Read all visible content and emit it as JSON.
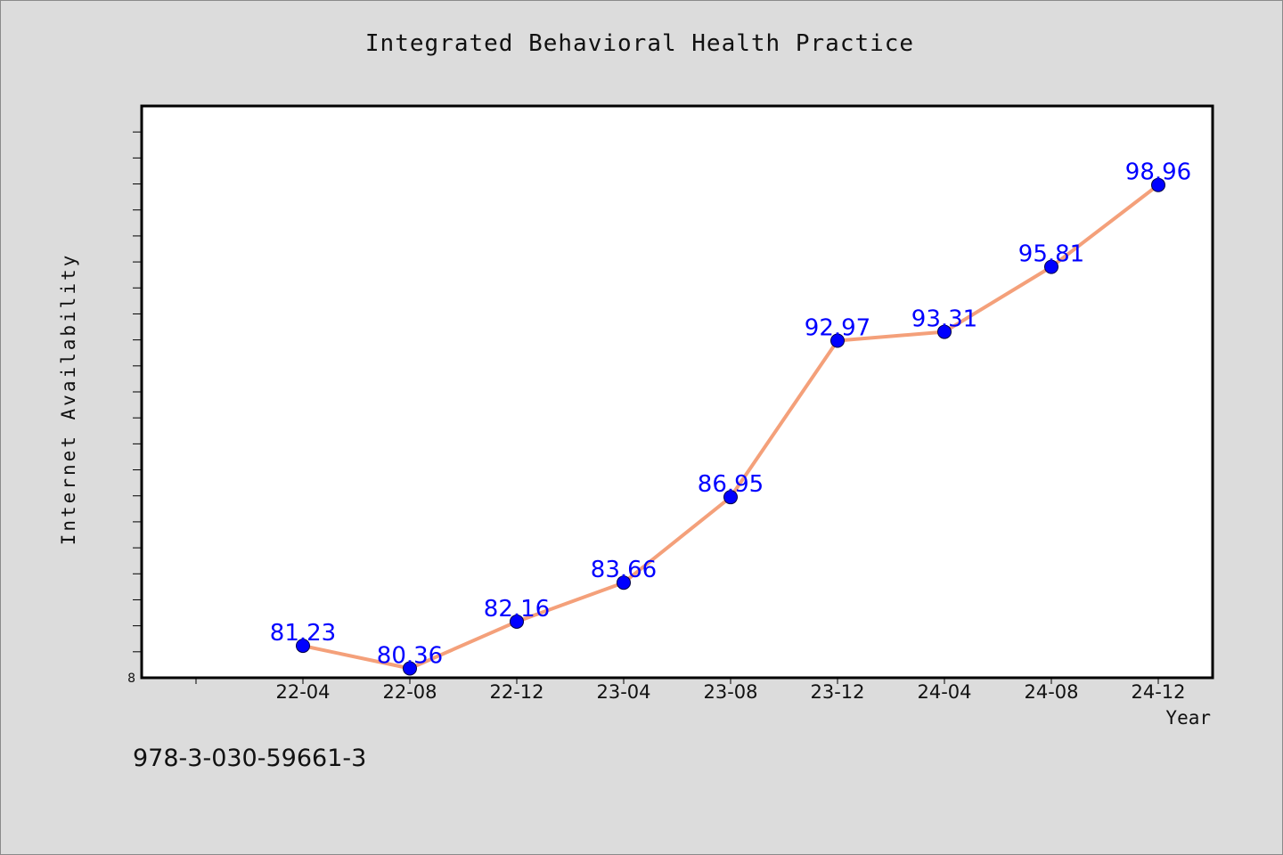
{
  "colors": {
    "background": "#dcdcdc",
    "plot_background": "#ffffff",
    "line": "#f4a07a",
    "marker": "#0000ff",
    "data_label": "#0000ff"
  },
  "footer": {
    "code": "978-3-030-59661-3"
  },
  "chart_data": {
    "type": "line",
    "title": "Integrated Behavioral Health Practice",
    "xlabel": "Year",
    "ylabel": "Internet Availability",
    "categories": [
      "22-04",
      "22-08",
      "22-12",
      "23-04",
      "23-08",
      "23-12",
      "24-04",
      "24-08",
      "24-12"
    ],
    "series": [
      {
        "values": [
          81.23,
          80.36,
          82.16,
          83.66,
          86.95,
          92.97,
          93.31,
          95.81,
          98.96
        ],
        "data_labels": [
          "81.23",
          "80.36",
          "82.16",
          "83.66",
          "86.95",
          "92.97",
          "93.31",
          "95.81",
          "98.96"
        ]
      }
    ],
    "ylim": [
      80,
      102
    ],
    "y_tick_labels": [
      "8"
    ],
    "markers": "circle",
    "legend": "none",
    "grid": false
  }
}
